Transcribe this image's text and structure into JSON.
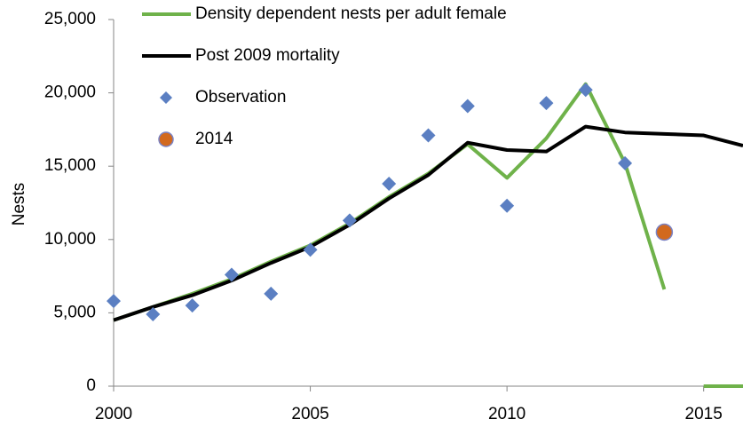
{
  "chart_data": {
    "type": "line",
    "y_label": "Nests",
    "xlim": [
      2000,
      2016
    ],
    "xticks": [
      2000,
      2005,
      2010,
      2015
    ],
    "ylim": [
      0,
      25000
    ],
    "yticks": [
      0,
      {
        "value": 5000,
        "label": "5,000"
      },
      {
        "value": 10000,
        "label": "10,000"
      },
      {
        "value": 15000,
        "label": "15,000"
      },
      {
        "value": 20000,
        "label": "20,000"
      },
      {
        "value": 25000,
        "label": "25,000"
      }
    ],
    "legend": "upper left",
    "series": [
      {
        "name": "Density dependent nests per adult female",
        "type": "line",
        "color": "#6fb24a",
        "x": [
          2000,
          2001,
          2002,
          2003,
          2004,
          2005,
          2006,
          2007,
          2008,
          2009,
          2010,
          2011,
          2012,
          2013,
          2014,
          null,
          2015,
          2016
        ],
        "values": [
          4500,
          5400,
          6300,
          7300,
          8500,
          9600,
          11100,
          12900,
          14500,
          16500,
          14200,
          16900,
          20600,
          15200,
          6600,
          null,
          0,
          0
        ]
      },
      {
        "name": "Post 2009 mortality",
        "type": "line",
        "color": "#000000",
        "x": [
          2000,
          2001,
          2002,
          2003,
          2004,
          2005,
          2006,
          2007,
          2008,
          2009,
          2010,
          2011,
          2012,
          2013,
          2014,
          2015,
          2016
        ],
        "values": [
          4500,
          5400,
          6200,
          7200,
          8400,
          9500,
          11000,
          12800,
          14400,
          16600,
          16100,
          16000,
          17700,
          17300,
          17200,
          17100,
          16400
        ]
      },
      {
        "name": "Observation",
        "type": "scatter",
        "marker": "diamond",
        "color": "#5b7fc2",
        "x": [
          2000,
          2001,
          2002,
          2003,
          2004,
          2005,
          2006,
          2007,
          2008,
          2009,
          2010,
          2011,
          2012,
          2013
        ],
        "values": [
          5800,
          4900,
          5500,
          7600,
          6300,
          9300,
          11300,
          13800,
          17100,
          19100,
          12300,
          19300,
          20200,
          15200
        ]
      },
      {
        "name": "2014",
        "type": "scatter",
        "marker": "circle",
        "color": "#d2691e",
        "edgecolor": "#7b83c4",
        "x": [
          2014
        ],
        "values": [
          10500
        ]
      }
    ]
  }
}
